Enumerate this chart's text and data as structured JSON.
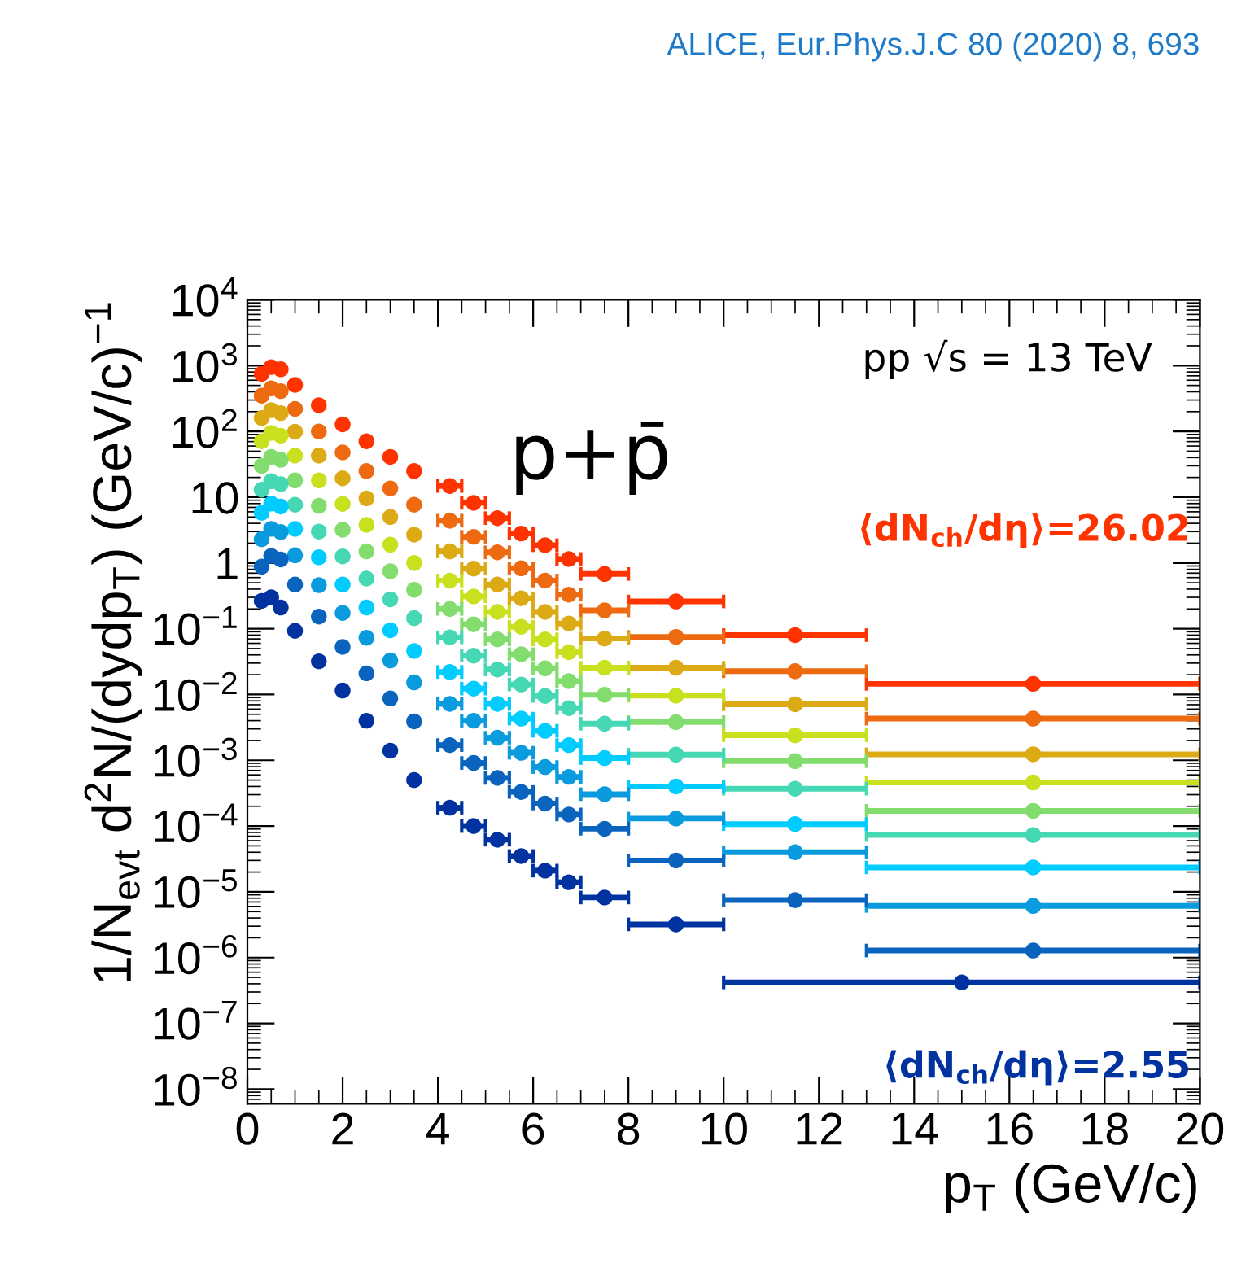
{
  "chart_data": {
    "type": "scatter",
    "title": "ALICE, Eur.Phys.J.C 80 (2020) 8, 693",
    "xlabel": "p$_{T}$ (GeV/c)",
    "ylabel": "1/N$_{evt}$ d$^{2}$N/(dydp$_{T}$) (GeV/c)$^{−1}$",
    "annotations": [
      "pp √s = 13 TeV",
      "p+p̄"
    ],
    "series": [
      {
        "name": "⟨dN$_{ch}$/dη⟩=26.02",
        "color": "#ff3300",
        "x": [
          0.3,
          0.5,
          0.7,
          1.0,
          1.5,
          2.0,
          2.5,
          3.0,
          3.5,
          4.25,
          4.75,
          5.25,
          5.75,
          6.25,
          6.75,
          7.5,
          9,
          11.5,
          16.5
        ],
        "xerrors": [
          null,
          null,
          null,
          null,
          null,
          null,
          null,
          null,
          null,
          0.25,
          0.25,
          0.25,
          0.25,
          0.25,
          0.25,
          0.5,
          1,
          1.5,
          3.5
        ],
        "values": [
          750,
          950,
          880,
          510,
          250,
          128,
          71,
          41,
          25,
          14.8,
          8.2,
          4.8,
          2.8,
          1.86,
          1.15,
          0.68,
          0.26,
          0.08,
          0.0145
        ]
      },
      {
        "color": "#ee6a10",
        "x": [
          0.3,
          0.5,
          0.7,
          1.0,
          1.5,
          2.0,
          2.5,
          3.0,
          3.5,
          4.25,
          4.75,
          5.25,
          5.75,
          6.25,
          6.75,
          7.5,
          9,
          11.5,
          16.5
        ],
        "xerrors": [
          null,
          null,
          null,
          null,
          null,
          null,
          null,
          null,
          null,
          0.25,
          0.25,
          0.25,
          0.25,
          0.25,
          0.25,
          0.5,
          1,
          1.5,
          3.5
        ],
        "values": [
          350,
          450,
          410,
          220,
          100,
          48,
          25,
          13.6,
          7.7,
          4.4,
          2.5,
          1.45,
          0.83,
          0.54,
          0.33,
          0.19,
          0.075,
          0.0226,
          0.0043
        ]
      },
      {
        "color": "#dcaa14",
        "x": [
          0.3,
          0.5,
          0.7,
          1.0,
          1.5,
          2.0,
          2.5,
          3.0,
          3.5,
          4.25,
          4.75,
          5.25,
          5.75,
          6.25,
          6.75,
          7.5,
          9,
          11.5,
          16.5
        ],
        "xerrors": [
          null,
          null,
          null,
          null,
          null,
          null,
          null,
          null,
          null,
          0.25,
          0.25,
          0.25,
          0.25,
          0.25,
          0.25,
          0.5,
          1,
          1.5,
          3.5
        ],
        "values": [
          160,
          210,
          190,
          99,
          43,
          19.4,
          9.6,
          5.0,
          2.7,
          1.5,
          0.82,
          0.47,
          0.29,
          0.18,
          0.12,
          0.071,
          0.0255,
          0.0071,
          0.00123
        ]
      },
      {
        "color": "#c8e01e",
        "x": [
          0.3,
          0.5,
          0.7,
          1.0,
          1.5,
          2.0,
          2.5,
          3.0,
          3.5,
          4.25,
          4.75,
          5.25,
          5.75,
          6.25,
          6.75,
          7.5,
          9,
          11.5,
          16.5
        ],
        "xerrors": [
          null,
          null,
          null,
          null,
          null,
          null,
          null,
          null,
          null,
          0.25,
          0.25,
          0.25,
          0.25,
          0.25,
          0.25,
          0.5,
          1,
          1.5,
          3.5
        ],
        "values": [
          71,
          95,
          86,
          43,
          18,
          7.9,
          3.8,
          1.9,
          1.0,
          0.54,
          0.31,
          0.18,
          0.107,
          0.069,
          0.044,
          0.0255,
          0.0096,
          0.0024,
          0.00046
        ]
      },
      {
        "color": "#82dc6e",
        "x": [
          0.3,
          0.5,
          0.7,
          1.0,
          1.5,
          2.0,
          2.5,
          3.0,
          3.5,
          4.25,
          4.75,
          5.25,
          5.75,
          6.25,
          6.75,
          7.5,
          9,
          11.5,
          16.5
        ],
        "xerrors": [
          null,
          null,
          null,
          null,
          null,
          null,
          null,
          null,
          null,
          0.25,
          0.25,
          0.25,
          0.25,
          0.25,
          0.25,
          0.5,
          1,
          1.5,
          3.5
        ],
        "values": [
          30,
          41,
          37,
          18,
          7.4,
          3.2,
          1.5,
          0.75,
          0.39,
          0.2,
          0.117,
          0.069,
          0.041,
          0.025,
          0.016,
          0.0099,
          0.0038,
          0.00097,
          0.00017
        ]
      },
      {
        "color": "#46d7b4",
        "x": [
          0.3,
          0.5,
          0.7,
          1.0,
          1.5,
          2.0,
          2.5,
          3.0,
          3.5,
          4.25,
          4.75,
          5.25,
          5.75,
          6.25,
          6.75,
          7.5,
          9,
          11.5,
          16.5
        ],
        "xerrors": [
          null,
          null,
          null,
          null,
          null,
          null,
          null,
          null,
          null,
          0.25,
          0.25,
          0.25,
          0.25,
          0.25,
          0.25,
          0.5,
          1,
          1.5,
          3.5
        ],
        "values": [
          13,
          17.5,
          15.8,
          7.7,
          3.0,
          1.26,
          0.58,
          0.28,
          0.145,
          0.074,
          0.039,
          0.024,
          0.0142,
          0.0095,
          0.0062,
          0.0036,
          0.00122,
          0.00037,
          7.3e-05
        ]
      },
      {
        "color": "#00ccff",
        "x": [
          0.3,
          0.5,
          0.7,
          1.0,
          1.5,
          2.0,
          2.5,
          3.0,
          3.5,
          4.25,
          4.75,
          5.25,
          5.75,
          6.25,
          6.75,
          7.5,
          9,
          11.5,
          16.5
        ],
        "xerrors": [
          null,
          null,
          null,
          null,
          null,
          null,
          null,
          null,
          null,
          0.25,
          0.25,
          0.25,
          0.25,
          0.25,
          0.25,
          0.5,
          1,
          1.5,
          3.5
        ],
        "values": [
          5.8,
          8.0,
          7.2,
          3.3,
          1.22,
          0.47,
          0.21,
          0.095,
          0.046,
          0.022,
          0.0123,
          0.0072,
          0.0043,
          0.0028,
          0.0017,
          0.00108,
          0.0004,
          0.000107,
          2.35e-05
        ]
      },
      {
        "color": "#0a9ade",
        "x": [
          0.3,
          0.5,
          0.7,
          1.0,
          1.5,
          2.0,
          2.5,
          3.0,
          3.5,
          4.25,
          4.75,
          5.25,
          5.75,
          6.25,
          6.75,
          7.5,
          9,
          11.5,
          16.5
        ],
        "xerrors": [
          null,
          null,
          null,
          null,
          null,
          null,
          null,
          null,
          null,
          0.25,
          0.25,
          0.25,
          0.25,
          0.25,
          0.25,
          0.5,
          1,
          1.5,
          3.5
        ],
        "values": [
          2.3,
          3.3,
          2.95,
          1.31,
          0.46,
          0.174,
          0.073,
          0.033,
          0.0153,
          0.0072,
          0.004,
          0.0022,
          0.0013,
          0.00079,
          0.00056,
          0.000305,
          0.00013,
          4e-05,
          6.1e-06
        ]
      },
      {
        "color": "#0a64be",
        "x": [
          0.3,
          0.5,
          0.7,
          1.0,
          1.5,
          2.0,
          2.5,
          3.0,
          3.5,
          4.25,
          4.75,
          5.25,
          5.75,
          6.25,
          6.75,
          7.5,
          9,
          11.5,
          16.5
        ],
        "xerrors": [
          null,
          null,
          null,
          null,
          null,
          null,
          null,
          null,
          null,
          0.25,
          0.25,
          0.25,
          0.25,
          0.25,
          0.25,
          0.5,
          1,
          1.5,
          3.5
        ],
        "values": [
          0.88,
          1.28,
          1.13,
          0.47,
          0.153,
          0.053,
          0.021,
          0.0087,
          0.0039,
          0.0017,
          0.00091,
          0.00054,
          0.00033,
          0.00022,
          0.00015,
          9.1e-05,
          3e-05,
          7.5e-06,
          1.28e-06
        ]
      },
      {
        "name": "⟨dN$_{ch}$/dη⟩=2.55",
        "color": "#0032a0",
        "x": [
          0.3,
          0.5,
          0.7,
          1.0,
          1.5,
          2.0,
          2.5,
          3.0,
          3.5,
          4.25,
          4.75,
          5.25,
          5.75,
          6.25,
          6.75,
          7.5,
          9,
          15
        ],
        "xerrors": [
          null,
          null,
          null,
          null,
          null,
          null,
          null,
          null,
          null,
          0.25,
          0.25,
          0.25,
          0.25,
          0.25,
          0.25,
          0.5,
          1,
          5
        ],
        "values": [
          0.265,
          0.3,
          0.21,
          0.093,
          0.032,
          0.0115,
          0.004,
          0.0014,
          0.0005,
          0.00019,
          0.0001,
          6.2e-05,
          3.5e-05,
          2.1e-05,
          1.4e-05,
          8.2e-06,
          3.2e-06,
          4.2e-07
        ]
      }
    ],
    "log": true,
    "marker": "circle",
    "grid": false,
    "xlim": [
      0,
      20
    ],
    "xticks": [
      0,
      2,
      4,
      6,
      8,
      10,
      12,
      14,
      16,
      18,
      20
    ],
    "ylim": [
      6e-09,
      10000
    ],
    "yticks": [
      {
        "value": 1e-08,
        "label": "10$^{−8}$"
      },
      {
        "value": 1e-07,
        "label": "10$^{−7}$"
      },
      {
        "value": 1e-06,
        "label": "10$^{−6}$"
      },
      {
        "value": 1e-05,
        "label": "10$^{−5}$"
      },
      {
        "value": 0.0001,
        "label": "10$^{−4}$"
      },
      {
        "value": 0.001,
        "label": "10$^{−3}$"
      },
      {
        "value": 0.01,
        "label": "10$^{−2}$"
      },
      {
        "value": 0.1,
        "label": "10$^{−1}$"
      },
      1,
      10,
      {
        "value": 100,
        "label": "10$^{2}$"
      },
      {
        "value": 1000,
        "label": "10$^{3}$"
      },
      {
        "value": 10000,
        "label": "10$^{4}$"
      }
    ]
  }
}
